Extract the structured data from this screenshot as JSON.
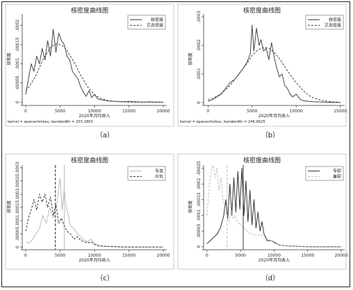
{
  "panel_labels": [
    "（a）",
    "（b）",
    "（c）",
    "（d）"
  ],
  "chart_data": [
    {
      "type": "line",
      "title": "核密度曲线图",
      "xlabel": "2020年月均收入",
      "ylabel": "核密度",
      "note": "kernel = epanechnikov, bandwidth = 255.2803",
      "xlim": [
        -500,
        20500
      ],
      "ylim": [
        -5e-06,
        0.00023
      ],
      "xticks": [
        0,
        5000,
        10000,
        15000,
        20000
      ],
      "yticks": [
        0,
        5e-05,
        0.0001,
        0.00015,
        0.0002
      ],
      "ytick_labels": [
        "0",
        ".00005",
        ".0001",
        ".00015",
        ".0002"
      ],
      "legend": {
        "position": "top-right",
        "entries": [
          "核密度",
          "正态密度"
        ]
      },
      "series": [
        {
          "name": "核密度",
          "style": "solid",
          "color": "#444444",
          "x": [
            0,
            400,
            800,
            1200,
            1600,
            2000,
            2400,
            2800,
            3200,
            3600,
            4000,
            4400,
            4800,
            5200,
            5600,
            6000,
            6400,
            6800,
            7200,
            7600,
            8000,
            8400,
            8800,
            9200,
            9600,
            10000,
            10500,
            11000,
            11500,
            12000,
            13000,
            14000,
            15000,
            16000,
            17000,
            18000,
            19000,
            20000
          ],
          "y": [
            2e-05,
            6e-05,
            0.0001,
            8e-05,
            0.00012,
            0.0001,
            0.00014,
            0.00011,
            0.00016,
            0.00012,
            0.00019,
            0.00013,
            0.00018,
            0.00016,
            0.00015,
            0.00012,
            0.00011,
            8e-05,
            7e-05,
            6e-05,
            4e-05,
            2.5e-05,
            1.5e-05,
            3e-05,
            1.2e-05,
            2e-05,
            8e-06,
            6e-06,
            5e-06,
            3e-06,
            2e-06,
            1e-06,
            2e-06,
            1e-06,
            0,
            1e-06,
            0,
            0
          ]
        },
        {
          "name": "正态密度",
          "style": "dashed",
          "color": "#444444",
          "x": [
            0,
            500,
            1000,
            1500,
            2000,
            2500,
            3000,
            3500,
            4000,
            4500,
            5000,
            5500,
            6000,
            6500,
            7000,
            7500,
            8000,
            8500,
            9000,
            9500,
            10000,
            10500,
            11000,
            11500,
            12000,
            13000,
            14000,
            15000,
            16000,
            17000,
            18000,
            19000,
            20000
          ],
          "y": [
            3e-05,
            4e-05,
            5.5e-05,
            7e-05,
            9e-05,
            0.00011,
            0.000125,
            0.00014,
            0.000148,
            0.000152,
            0.00015,
            0.000145,
            0.000135,
            0.00012,
            0.000105,
            8.8e-05,
            7e-05,
            5.5e-05,
            4e-05,
            3e-05,
            2e-05,
            1.4e-05,
            9e-06,
            6e-06,
            4e-06,
            2e-06,
            1e-06,
            0,
            0,
            0,
            0,
            0,
            0
          ]
        }
      ]
    },
    {
      "type": "line",
      "title": "核密度曲线图",
      "xlabel": "2020年月均收入",
      "ylabel": "核密度",
      "note": "kernel = epanechnikov, bandwidth = 246.9625",
      "xlim": [
        -500,
        15500
      ],
      "ylim": [
        -5e-06,
        0.00031
      ],
      "xticks": [
        0,
        5000,
        10000,
        15000
      ],
      "yticks": [
        0,
        0.0001,
        0.0002,
        0.0003
      ],
      "ytick_labels": [
        "0",
        ".0001",
        ".0002",
        ".0003"
      ],
      "legend": {
        "position": "top-right",
        "entries": [
          "核密度",
          "正态密度"
        ]
      },
      "series": [
        {
          "name": "核密度",
          "style": "solid",
          "color": "#444444",
          "x": [
            0,
            500,
            1000,
            1500,
            2000,
            2500,
            3000,
            3500,
            4000,
            4400,
            4800,
            5000,
            5200,
            5500,
            5800,
            6000,
            6300,
            6600,
            6900,
            7200,
            7500,
            7800,
            8100,
            8400,
            8700,
            9000,
            9300,
            9600,
            10000,
            10500,
            11000,
            11500,
            12000,
            13000,
            14000,
            15000
          ],
          "y": [
            5e-06,
            1e-05,
            2e-05,
            3e-05,
            5e-05,
            7e-05,
            8e-05,
            0.0001,
            0.00012,
            0.00014,
            0.00017,
            0.00027,
            0.00018,
            0.00026,
            0.0002,
            0.00022,
            0.00018,
            0.00019,
            0.00015,
            0.00021,
            0.00016,
            0.00012,
            9e-05,
            0.0001,
            6e-05,
            5e-05,
            3e-05,
            2e-05,
            3e-05,
            1e-05,
            6e-06,
            4e-06,
            3e-06,
            2e-06,
            1e-06,
            0
          ]
        },
        {
          "name": "正态密度",
          "style": "dashed",
          "color": "#444444",
          "x": [
            0,
            500,
            1000,
            1500,
            2000,
            2500,
            3000,
            3500,
            4000,
            4500,
            5000,
            5500,
            6000,
            6500,
            7000,
            7500,
            8000,
            8500,
            9000,
            9500,
            10000,
            10500,
            11000,
            11500,
            12000,
            13000,
            14000,
            15000
          ],
          "y": [
            1e-05,
            1.5e-05,
            2.2e-05,
            3.2e-05,
            4.5e-05,
            6e-05,
            8e-05,
            0.0001,
            0.00012,
            0.00014,
            0.000165,
            0.00018,
            0.00019,
            0.000193,
            0.000188,
            0.000175,
            0.000158,
            0.000136,
            0.000112,
            9e-05,
            7e-05,
            5.2e-05,
            3.6e-05,
            2.4e-05,
            1.6e-05,
            7e-06,
            3e-06,
            1e-06
          ]
        }
      ]
    },
    {
      "type": "line",
      "title": "核密度曲线图",
      "xlabel": "2020年月均收入",
      "ylabel": "核密度",
      "xlim": [
        -500,
        20500
      ],
      "ylim": [
        -5e-06,
        0.00031
      ],
      "xticks": [
        0,
        5000,
        10000,
        15000,
        20000
      ],
      "yticks": [
        0,
        5e-05,
        0.0001,
        0.00015,
        0.0002,
        0.00025,
        0.0003
      ],
      "ytick_labels": [
        "0",
        ".00005",
        ".0001",
        ".00015",
        ".0002",
        ".00025",
        ".0003"
      ],
      "legend": {
        "position": "top-right",
        "entries": [
          "专选",
          "众包"
        ]
      },
      "vlines": [
        {
          "x": 4300,
          "style": "dashed",
          "color": "#333333"
        },
        {
          "x": 5600,
          "style": "solid",
          "color": "#bbbbbb"
        }
      ],
      "series": [
        {
          "name": "专选",
          "style": "solid",
          "color": "#bbbbbb",
          "x": [
            0,
            500,
            1000,
            1500,
            2000,
            2500,
            3000,
            3500,
            4000,
            4500,
            5000,
            5300,
            5600,
            5900,
            6200,
            6500,
            7000,
            7500,
            8000,
            8500,
            9000,
            9500,
            10000,
            10500,
            11000,
            12000,
            13000,
            14000,
            15000,
            16000,
            17000,
            18000,
            19000,
            20000
          ],
          "y": [
            2e-05,
            1.5e-05,
            3e-05,
            5e-05,
            7e-05,
            0.00012,
            9e-05,
            0.00015,
            0.00011,
            0.00016,
            0.00026,
            0.00014,
            0.00022,
            0.00015,
            0.00012,
            8e-05,
            7e-05,
            5e-05,
            4e-05,
            2.5e-05,
            2e-05,
            3e-05,
            1.2e-05,
            8e-06,
            5e-06,
            3e-06,
            2e-06,
            1e-06,
            0,
            0,
            0,
            0,
            0,
            0
          ]
        },
        {
          "name": "众包",
          "style": "dashed",
          "color": "#333333",
          "x": [
            0,
            400,
            800,
            1200,
            1600,
            2000,
            2400,
            2800,
            3200,
            3600,
            4000,
            4400,
            4800,
            5200,
            5600,
            6000,
            6500,
            7000,
            7500,
            8000,
            8500,
            9000,
            9500,
            10000,
            10500,
            11000,
            12000,
            13000,
            14000,
            15000,
            16000,
            17000,
            18000,
            19000,
            20000
          ],
          "y": [
            6e-05,
            0.00011,
            0.00014,
            0.00018,
            0.00014,
            0.0002,
            0.00017,
            0.0002,
            0.00015,
            0.00019,
            0.00012,
            0.00016,
            9e-05,
            0.00011,
            8e-05,
            6e-05,
            5e-05,
            3e-05,
            4e-05,
            2.5e-05,
            2e-05,
            1.5e-05,
            2e-05,
            1e-05,
            5e-06,
            3e-06,
            2e-06,
            1e-06,
            0,
            0,
            0,
            0,
            0,
            0,
            0
          ]
        }
      ]
    },
    {
      "type": "line",
      "title": "核密度曲线图",
      "xlabel": "2020年月均收入",
      "ylabel": "核密度",
      "xlim": [
        -500,
        20500
      ],
      "ylim": [
        -5e-06,
        0.00026
      ],
      "xticks": [
        0,
        5000,
        10000,
        15000,
        20000
      ],
      "yticks": [
        0,
        5e-05,
        0.0001,
        0.00015,
        0.0002,
        0.00025
      ],
      "ytick_labels": [
        "0",
        ".00005",
        ".0001",
        ".00015",
        ".0002",
        ".00025"
      ],
      "legend": {
        "position": "top-right",
        "entries": [
          "专职",
          "兼职"
        ]
      },
      "vlines": [
        {
          "x": 3000,
          "style": "dashed",
          "color": "#bbbbbb"
        },
        {
          "x": 5400,
          "style": "solid",
          "color": "#333333"
        }
      ],
      "series": [
        {
          "name": "专职",
          "style": "solid",
          "color": "#333333",
          "x": [
            0,
            500,
            1000,
            1500,
            2000,
            2500,
            2800,
            3100,
            3400,
            3700,
            4000,
            4300,
            4600,
            4900,
            5200,
            5500,
            5800,
            6100,
            6400,
            6700,
            7000,
            7300,
            7600,
            7900,
            8200,
            8500,
            9000,
            9500,
            10000,
            10500,
            11000,
            12000,
            13000,
            14000,
            15000,
            16000,
            17000,
            18000,
            19000,
            20000
          ],
          "y": [
            1e-05,
            2e-05,
            3e-05,
            4e-05,
            6e-05,
            0.0001,
            0.00015,
            9e-05,
            0.0002,
            0.0001,
            0.00022,
            0.00011,
            0.00024,
            0.00012,
            0.00025,
            0.0001,
            0.00021,
            8e-05,
            0.00018,
            7e-05,
            0.00015,
            6e-05,
            0.00011,
            5e-05,
            8e-05,
            4e-05,
            2e-05,
            2e-05,
            1.5e-05,
            8e-06,
            5e-06,
            3e-06,
            2e-06,
            1e-06,
            0,
            0,
            0,
            0,
            0,
            0
          ]
        },
        {
          "name": "兼职",
          "style": "dashed",
          "color": "#bbbbbb",
          "x": [
            0,
            300,
            600,
            900,
            1200,
            1500,
            1800,
            2100,
            2400,
            2700,
            3000,
            3300,
            3600,
            3900,
            4200,
            4500,
            5000,
            5500,
            6000,
            6500,
            7000,
            7500,
            8000,
            8500,
            9000,
            9500,
            10000,
            10500,
            11000,
            12000,
            13000,
            14000,
            15000,
            16000,
            17000,
            18000,
            19000,
            20000
          ],
          "y": [
            0.0001,
            0.00018,
            0.00024,
            0.00026,
            0.00022,
            0.00025,
            0.00018,
            0.00022,
            0.00015,
            0.00012,
            0.0001,
            8e-05,
            0.00012,
            9e-05,
            0.0001,
            8e-05,
            7e-05,
            6e-05,
            5e-05,
            4e-05,
            4e-05,
            3.5e-05,
            4e-05,
            3e-05,
            1.5e-05,
            2e-05,
            1.2e-05,
            8e-06,
            5e-06,
            3e-06,
            2e-06,
            1e-06,
            0,
            0,
            0,
            0,
            0,
            0
          ]
        }
      ]
    }
  ]
}
